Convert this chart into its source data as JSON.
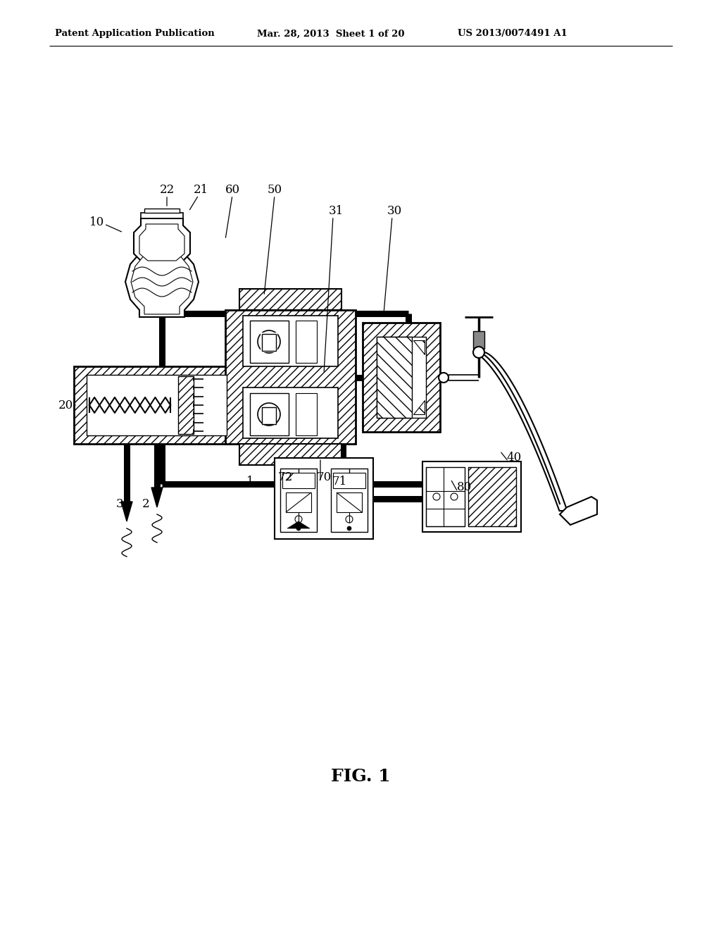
{
  "header_left": "Patent Application Publication",
  "header_mid": "Mar. 28, 2013  Sheet 1 of 20",
  "header_right": "US 2013/0074491 A1",
  "fig_label": "FIG. 1",
  "bg_color": "#ffffff"
}
